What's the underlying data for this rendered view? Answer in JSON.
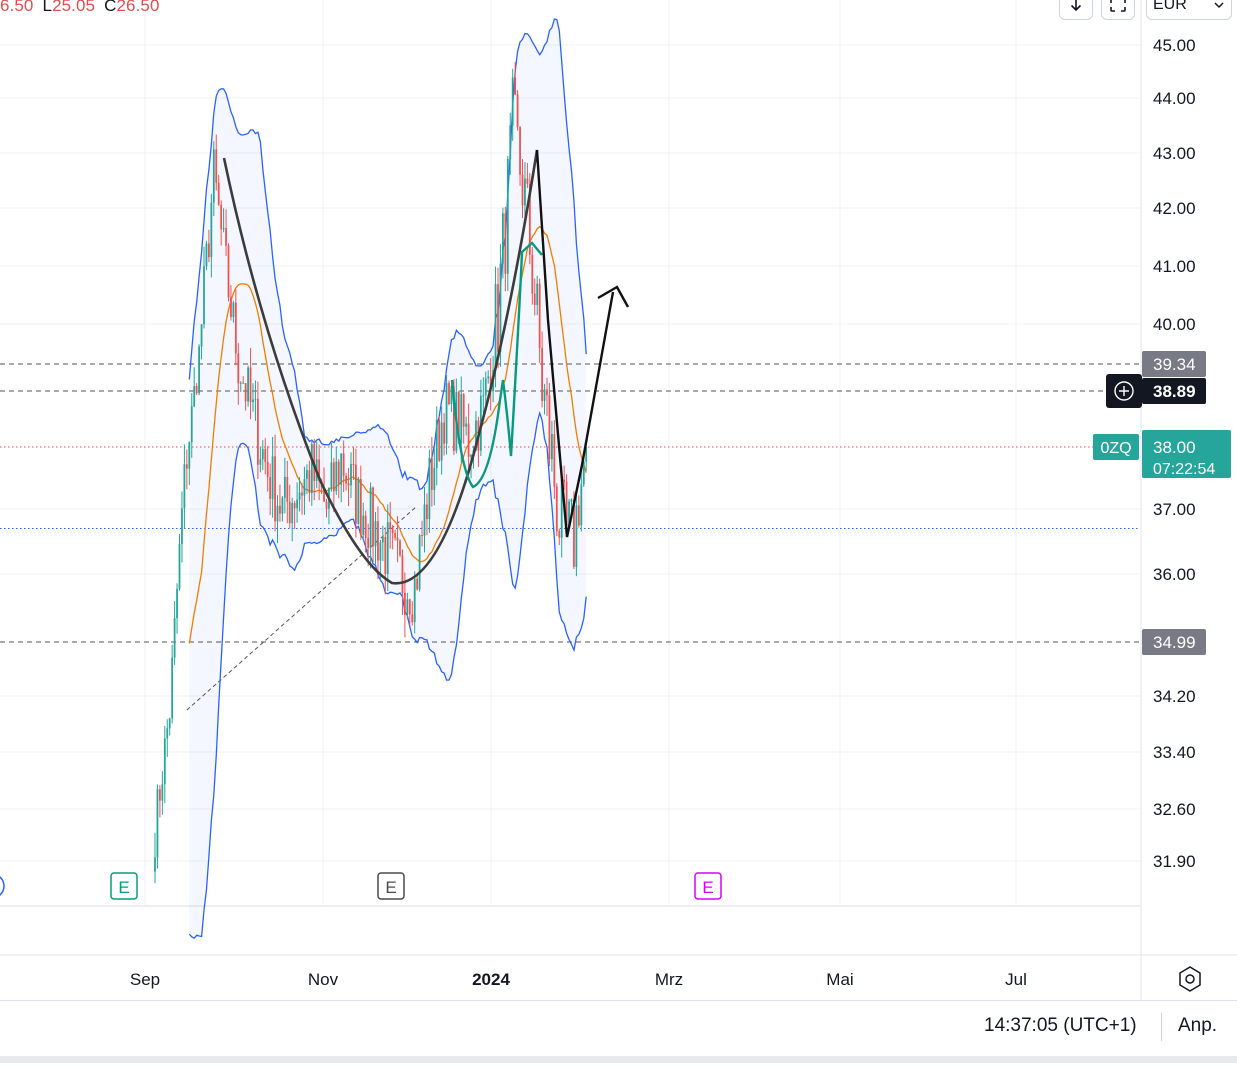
{
  "header": {
    "ohlc_open": "6.50",
    "ohlc_low_key": "L",
    "ohlc_low": "25.05",
    "ohlc_close_key": "C",
    "ohlc_close": "26.50",
    "currency": "EUR"
  },
  "toolbar": {
    "download_icon": "arrow-down-icon",
    "fullscreen_icon": "fullscreen-icon",
    "dropdown_icon": "chevron-down-icon"
  },
  "footer": {
    "time": "14:37:05 (UTC+1)",
    "adjust_label": "Anp."
  },
  "chart_data": {
    "type": "candlestick",
    "symbol_badge": "0ZQ",
    "y_axis_labels": [
      "45.00",
      "44.00",
      "43.00",
      "42.00",
      "41.00",
      "40.00",
      "37.00",
      "36.00",
      "34.20",
      "33.40",
      "32.60",
      "31.90"
    ],
    "x_axis_labels": [
      "Sep",
      "Nov",
      "2024",
      "Mrz",
      "Mai",
      "Jul"
    ],
    "price_badges": [
      {
        "value": "39.34",
        "style": "gray"
      },
      {
        "value": "38.89",
        "style": "dark"
      },
      {
        "value": "38.00",
        "style": "teal",
        "countdown": "07:22:54"
      },
      {
        "value": "34.99",
        "style": "gray"
      }
    ],
    "horizontal_lines": [
      {
        "price": 39.34,
        "style": "dashed",
        "color": "#555555"
      },
      {
        "price": 38.89,
        "style": "dashed",
        "color": "#555555"
      },
      {
        "price": 38.0,
        "style": "dotted",
        "color": "#e04f4f"
      },
      {
        "price": 36.7,
        "style": "dotted",
        "color": "#2962ff"
      },
      {
        "price": 34.99,
        "style": "dashed",
        "color": "#555555"
      }
    ],
    "event_markers": [
      {
        "label": "E",
        "month": "Sep",
        "color": "#089981"
      },
      {
        "label": "E",
        "month": "Dez",
        "color": "#4a4a4a"
      },
      {
        "label": "E",
        "month": "Mrz",
        "color": "#d500f9"
      }
    ],
    "series": [
      {
        "role": "price",
        "color_up": "#26a69a",
        "color_down": "#ef5350",
        "anchors": [
          [
            0,
            32.3
          ],
          [
            6,
            34.0
          ],
          [
            12,
            37.5
          ],
          [
            18,
            39.5
          ],
          [
            24,
            42.6
          ],
          [
            28,
            41.2
          ],
          [
            34,
            39.4
          ],
          [
            40,
            38.5
          ],
          [
            46,
            37.6
          ],
          [
            52,
            37.0
          ],
          [
            58,
            37.3
          ],
          [
            64,
            37.6
          ],
          [
            70,
            37.0
          ],
          [
            76,
            37.8
          ],
          [
            82,
            37.2
          ],
          [
            88,
            36.8
          ],
          [
            94,
            36.4
          ],
          [
            100,
            36.0
          ],
          [
            106,
            35.8
          ],
          [
            112,
            37.4
          ],
          [
            118,
            38.6
          ],
          [
            124,
            38.4
          ],
          [
            128,
            38.1
          ],
          [
            134,
            38.6
          ],
          [
            140,
            40.2
          ],
          [
            144,
            42.2
          ],
          [
            146,
            43.5
          ],
          [
            150,
            42.5
          ],
          [
            154,
            41.0
          ],
          [
            158,
            39.0
          ],
          [
            162,
            37.8
          ],
          [
            166,
            36.6
          ],
          [
            170,
            36.4
          ],
          [
            174,
            37.4
          ],
          [
            176,
            38.0
          ]
        ]
      },
      {
        "role": "bollinger-upper",
        "color": "#2962ff"
      },
      {
        "role": "bollinger-lower",
        "color": "#2962ff"
      },
      {
        "role": "moving-average",
        "color": "#f57c00"
      }
    ],
    "annotations": [
      {
        "type": "cup-curve",
        "color": "#3c3c3c"
      },
      {
        "type": "handle-arrow",
        "color": "#000000"
      },
      {
        "type": "inner-rounding",
        "color": "#089981"
      },
      {
        "type": "trendline",
        "style": "dashed",
        "color": "#555555"
      }
    ],
    "grid": true
  }
}
